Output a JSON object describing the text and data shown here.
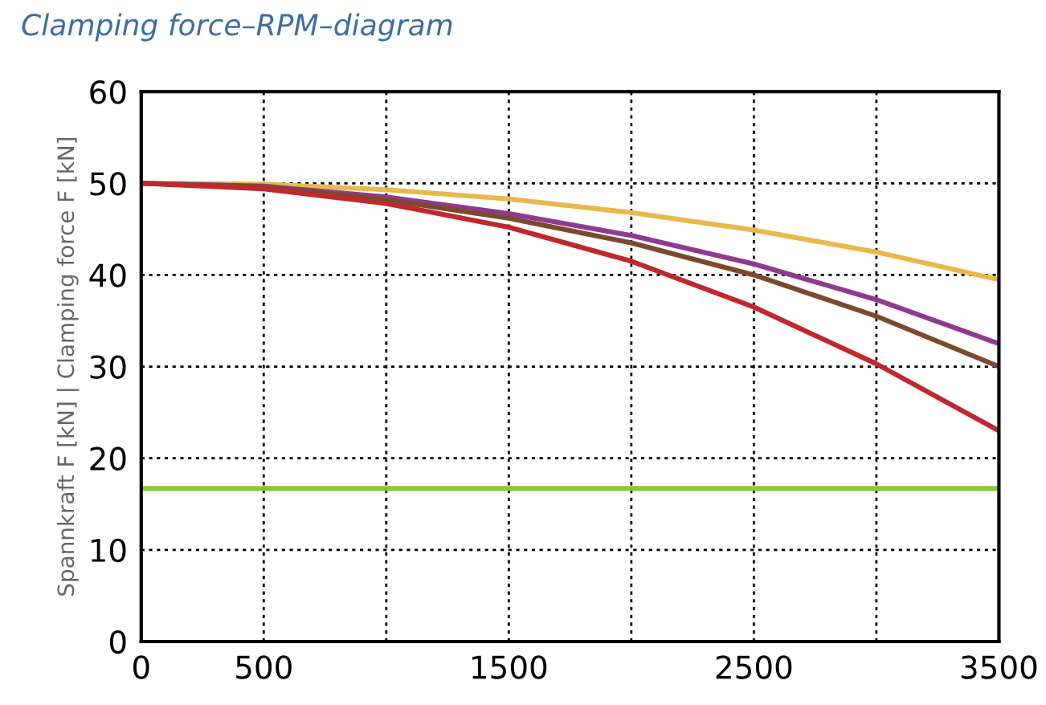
{
  "chart_data": {
    "type": "line",
    "title": "Clamping force–RPM–diagram",
    "ylabel": "Spannkraft F [kN] | Clamping force F [kN]",
    "x": [
      0,
      500,
      1000,
      1500,
      2000,
      2500,
      3000,
      3500
    ],
    "series": [
      {
        "color": "#e8b84a",
        "values": [
          50,
          49.9,
          49.3,
          48.3,
          46.8,
          44.9,
          42.5,
          39.5
        ]
      },
      {
        "color": "#8e3b8e",
        "values": [
          50,
          49.7,
          48.5,
          46.7,
          44.3,
          41.2,
          37.3,
          32.5
        ]
      },
      {
        "color": "#7a4a2e",
        "values": [
          50,
          49.6,
          48.2,
          46.2,
          43.5,
          40,
          35.5,
          30
        ]
      },
      {
        "color": "#c0282d",
        "values": [
          50,
          49.4,
          47.8,
          45.2,
          41.5,
          36.5,
          30.3,
          23
        ]
      },
      {
        "color": "#8cc63f",
        "values": [
          16.7,
          16.7,
          16.7,
          16.7,
          16.7,
          16.7,
          16.7,
          16.7
        ]
      }
    ],
    "xlim": [
      0,
      3500
    ],
    "ylim": [
      0,
      60
    ],
    "xticks": [
      0,
      500,
      {
        "value": 1000,
        "label": null
      },
      1500,
      {
        "value": 2000,
        "label": null
      },
      2500,
      {
        "value": 3000,
        "label": null
      },
      3500
    ],
    "yticks": [
      0,
      10,
      20,
      30,
      40,
      50,
      60
    ],
    "grid": true,
    "marker": "none",
    "line_style": "solid"
  }
}
